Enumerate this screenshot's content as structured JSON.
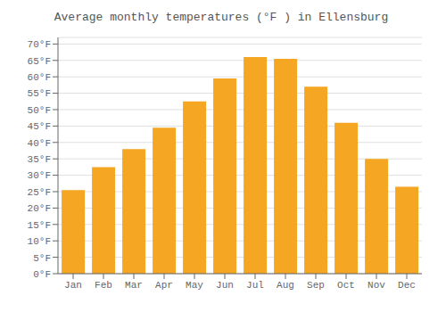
{
  "chart_data": {
    "type": "bar",
    "title": "Average monthly temperatures (°F ) in Ellensburg",
    "categories": [
      "Jan",
      "Feb",
      "Mar",
      "Apr",
      "May",
      "Jun",
      "Jul",
      "Aug",
      "Sep",
      "Oct",
      "Nov",
      "Dec"
    ],
    "values": [
      25.5,
      32.5,
      38,
      44.5,
      52.5,
      59.5,
      66,
      65.5,
      57,
      46,
      35,
      26.5
    ],
    "color": "#F5A623",
    "ylim": [
      0,
      72
    ],
    "yticks": [
      {
        "value": 0,
        "label": "0°F"
      },
      {
        "value": 5,
        "label": "5°F"
      },
      {
        "value": 10,
        "label": "10°F"
      },
      {
        "value": 15,
        "label": "15°F"
      },
      {
        "value": 20,
        "label": "20°F"
      },
      {
        "value": 25,
        "label": "25°F"
      },
      {
        "value": 30,
        "label": "30°F"
      },
      {
        "value": 35,
        "label": "35°F"
      },
      {
        "value": 40,
        "label": "40°F"
      },
      {
        "value": 45,
        "label": "45°F"
      },
      {
        "value": 50,
        "label": "50°F"
      },
      {
        "value": 55,
        "label": "55°F"
      },
      {
        "value": 60,
        "label": "60°F"
      },
      {
        "value": 65,
        "label": "65°F"
      },
      {
        "value": 70,
        "label": "70°F"
      }
    ],
    "grid": true
  }
}
